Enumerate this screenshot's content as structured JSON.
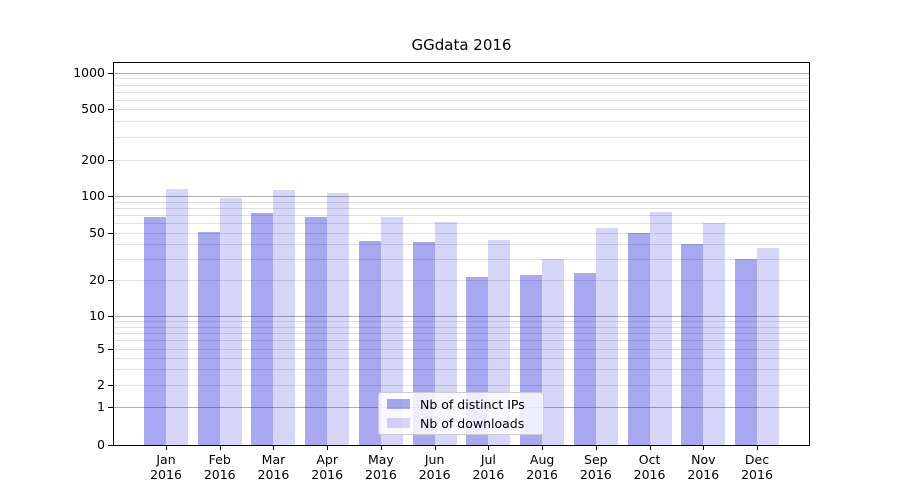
{
  "chart_data": {
    "type": "bar",
    "title": "GGdata 2016",
    "categories": [
      "Jan",
      "Feb",
      "Mar",
      "Apr",
      "May",
      "Jun",
      "Jul",
      "Aug",
      "Sep",
      "Oct",
      "Nov",
      "Dec"
    ],
    "year": "2016",
    "series": [
      {
        "name": "Nb of distinct IPs",
        "color": "rgba(0,0,215,0.34)",
        "values": [
          68,
          51,
          73,
          67,
          43,
          42,
          21,
          22,
          23,
          50,
          40,
          30
        ]
      },
      {
        "name": "Nb of downloads",
        "color": "rgba(0,0,215,0.16)",
        "values": [
          115,
          96,
          112,
          106,
          68,
          62,
          44,
          30,
          55,
          74,
          60,
          37
        ]
      }
    ],
    "y_axis": {
      "scale": "symlog",
      "ticks": [
        0,
        1,
        2,
        5,
        10,
        20,
        50,
        100,
        200,
        500,
        1000
      ],
      "lim": [
        0,
        1200
      ]
    },
    "grid": {
      "which": "both",
      "major_color": "#b0b0b0",
      "minor_color": "#e0e0e0"
    },
    "legend": {
      "position": "lower center"
    }
  }
}
